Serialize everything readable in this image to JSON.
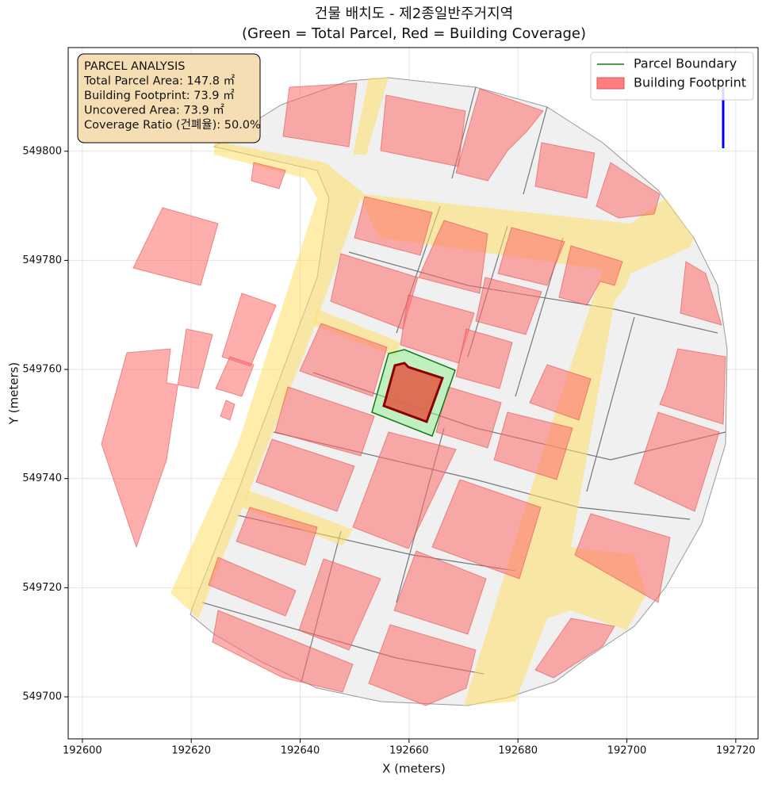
{
  "chart_data": {
    "type": "map",
    "title": "건물 배치도 - 제2종일반주거지역",
    "subtitle": "(Green = Total Parcel, Red = Building Coverage)",
    "xlabel": "X (meters)",
    "ylabel": "Y (meters)",
    "xlim": [
      192597.4,
      192724.1
    ],
    "ylim": [
      549692.3,
      549819.0
    ],
    "xticks": [
      192600,
      192620,
      192640,
      192660,
      192680,
      192700,
      192720
    ],
    "yticks": [
      549700,
      549720,
      549740,
      549760,
      549780,
      549800
    ],
    "grid": true,
    "legend_position": "upper right",
    "legend": [
      {
        "name": "Parcel Boundary",
        "color": "#137a13"
      },
      {
        "name": "Building Footprint",
        "color": "#ff7f7f"
      }
    ],
    "annotation": [
      "PARCEL ANALYSIS",
      "Total Parcel Area: 147.8 ㎡",
      "Building Footprint: 73.9 ㎡",
      "Uncovered Area: 73.9 ㎡",
      "Coverage Ratio (건폐율): 50.0%"
    ]
  }
}
